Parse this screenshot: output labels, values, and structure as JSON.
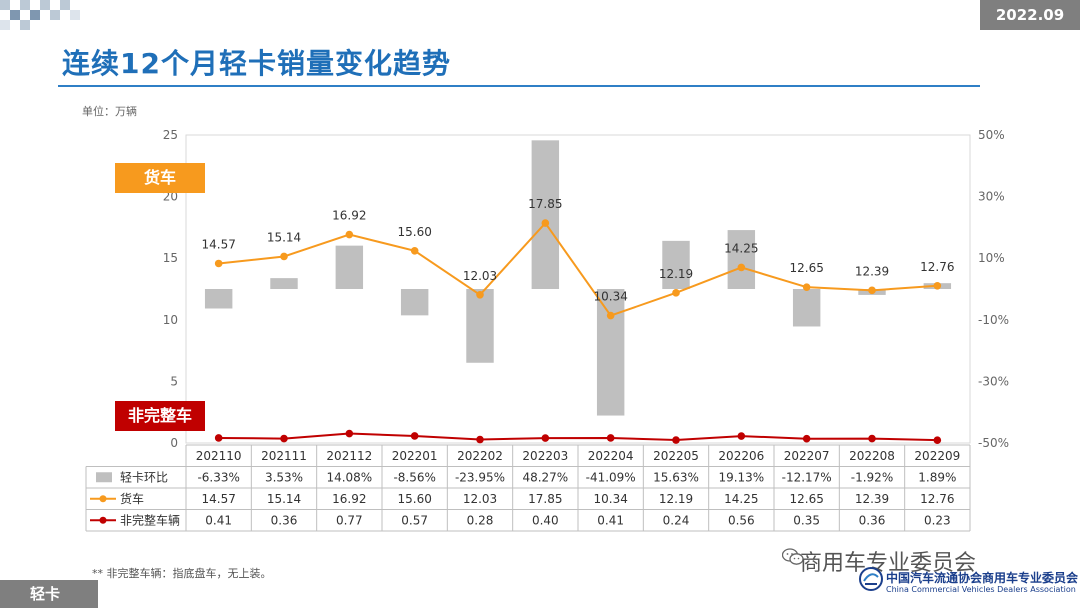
{
  "header": {
    "date": "2022.09",
    "title": "连续12个月轻卡销量变化趋势",
    "unit": "单位：万辆"
  },
  "tags": {
    "truck": "货车",
    "incomplete": "非完整车"
  },
  "footer": {
    "note": "** 非完整车辆：指底盘车，无上装。",
    "section": "轻卡",
    "watermark": "商用车专业委员会",
    "association_cn": "中国汽车流通协会商用车专业委员会",
    "association_en": "China Commercial Vehicles Dealers Association",
    "logo_icon": "cvda-logo-icon",
    "wechat_icon": "wechat-icon"
  },
  "colors": {
    "accent_blue": "#1f6fb8",
    "bar": "#bfbfbf",
    "truck_line": "#f79a1e",
    "incomplete_line": "#c00000",
    "badge_gray": "#7f7f7f"
  },
  "chart_data": {
    "type": "bar",
    "categories": [
      "202110",
      "202111",
      "202112",
      "202201",
      "202202",
      "202203",
      "202204",
      "202205",
      "202206",
      "202207",
      "202208",
      "202209"
    ],
    "left_axis": {
      "ylim": [
        0,
        25
      ],
      "ticks": [
        "0",
        "5",
        "10",
        "15",
        "20",
        "25"
      ]
    },
    "right_axis": {
      "ylim": [
        -50,
        50
      ],
      "ticks": [
        "-50%",
        "-30%",
        "-10%",
        "10%",
        "30%",
        "50%"
      ]
    },
    "grid": false,
    "series": [
      {
        "name": "轻卡环比",
        "type": "bar",
        "axis": "right",
        "values": [
          -6.33,
          3.53,
          14.08,
          -8.56,
          -23.95,
          48.27,
          -41.09,
          15.63,
          19.13,
          -12.17,
          -1.92,
          1.89
        ],
        "labels": [
          "-6.33%",
          "3.53%",
          "14.08%",
          "-8.56%",
          "-23.95%",
          "48.27%",
          "-41.09%",
          "15.63%",
          "19.13%",
          "-12.17%",
          "-1.92%",
          "1.89%"
        ]
      },
      {
        "name": "货车",
        "type": "line",
        "axis": "left",
        "values": [
          14.57,
          15.14,
          16.92,
          15.6,
          12.03,
          17.85,
          10.34,
          12.19,
          14.25,
          12.65,
          12.39,
          12.76
        ],
        "labels": [
          "14.57",
          "15.14",
          "16.92",
          "15.60",
          "12.03",
          "17.85",
          "10.34",
          "12.19",
          "14.25",
          "12.65",
          "12.39",
          "12.76"
        ]
      },
      {
        "name": "非完整车辆",
        "type": "line",
        "axis": "left",
        "values": [
          0.41,
          0.36,
          0.77,
          0.57,
          0.28,
          0.4,
          0.41,
          0.24,
          0.56,
          0.35,
          0.36,
          0.23
        ],
        "labels": [
          "0.41",
          "0.36",
          "0.77",
          "0.57",
          "0.28",
          "0.40",
          "0.41",
          "0.24",
          "0.56",
          "0.35",
          "0.36",
          "0.23"
        ]
      }
    ]
  }
}
